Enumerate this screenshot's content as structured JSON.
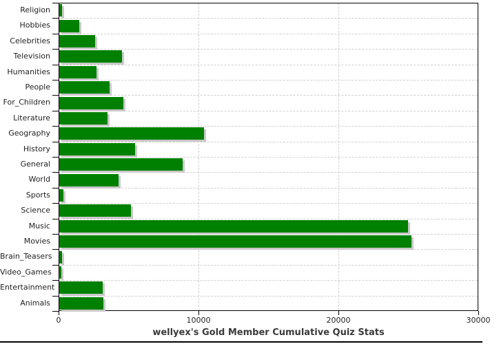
{
  "chart_data": {
    "type": "bar",
    "orientation": "horizontal",
    "title": "wellyex's Gold Member Cumulative Quiz Stats",
    "xlabel": "",
    "ylabel": "",
    "categories": [
      "Religion",
      "Hobbies",
      "Celebrities",
      "Television",
      "Humanities",
      "People",
      "For_Children",
      "Literature",
      "Geography",
      "History",
      "General",
      "World",
      "Sports",
      "Science",
      "Music",
      "Movies",
      "Brain_Teasers",
      "Video_Games",
      "Entertainment",
      "Animals"
    ],
    "values": [
      200,
      1450,
      2550,
      4500,
      2650,
      3600,
      4600,
      3450,
      10350,
      5400,
      8800,
      4250,
      300,
      5100,
      24950,
      25150,
      200,
      150,
      3100,
      3150
    ],
    "xlim": [
      0,
      30000
    ],
    "x_ticks": [
      0,
      10000,
      20000,
      30000
    ],
    "x_tick_labels": [
      "0",
      "10000",
      "20000",
      "30000"
    ],
    "grid": "dashed",
    "legend": "none",
    "colors": {
      "bar_fill": "#008000",
      "bar_shadow": "#c9c9c9",
      "grid_line": "#cfcfcf",
      "axis_line": "#000000",
      "title_text": "#3a3a3a",
      "label_text": "#1f1f1f",
      "background": "#ffffff"
    }
  }
}
